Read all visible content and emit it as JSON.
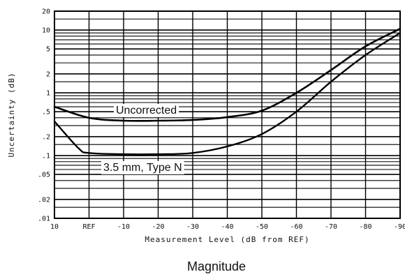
{
  "chart_data": {
    "type": "line",
    "title": "",
    "caption": "Magnitude",
    "xlabel": "Measurement Level (dB from REF)",
    "ylabel": "Uncertainty (dB)",
    "x_categories": [
      "10",
      "REF",
      "-10",
      "-20",
      "-30",
      "-40",
      "-50",
      "-60",
      "-70",
      "-80",
      "-90"
    ],
    "y_scale": "log",
    "ylim": [
      0.01,
      20
    ],
    "y_tick_values": [
      20,
      10,
      5,
      2,
      1,
      0.5,
      0.2,
      0.1,
      0.05,
      0.02,
      0.01
    ],
    "y_tick_labels": [
      "20",
      "10",
      "5",
      "2",
      "1",
      ".5",
      ".2",
      ".1",
      ".05",
      ".02",
      ".01"
    ],
    "grid": true,
    "series": [
      {
        "name": "Uncorrected",
        "x": [
          10,
          0,
          -10,
          -20,
          -30,
          -40,
          -50,
          -60,
          -70,
          -80,
          -90
        ],
        "y": [
          0.6,
          0.4,
          0.36,
          0.36,
          0.37,
          0.41,
          0.52,
          1.0,
          2.3,
          5.5,
          10.5
        ]
      },
      {
        "name": "3.5 mm, Type N",
        "x": [
          10,
          3,
          0,
          -10,
          -20,
          -30,
          -40,
          -50,
          -60,
          -70,
          -80,
          -90
        ],
        "y": [
          0.35,
          0.13,
          0.11,
          0.105,
          0.105,
          0.11,
          0.14,
          0.22,
          0.5,
          1.5,
          4.0,
          9.0
        ]
      }
    ]
  }
}
